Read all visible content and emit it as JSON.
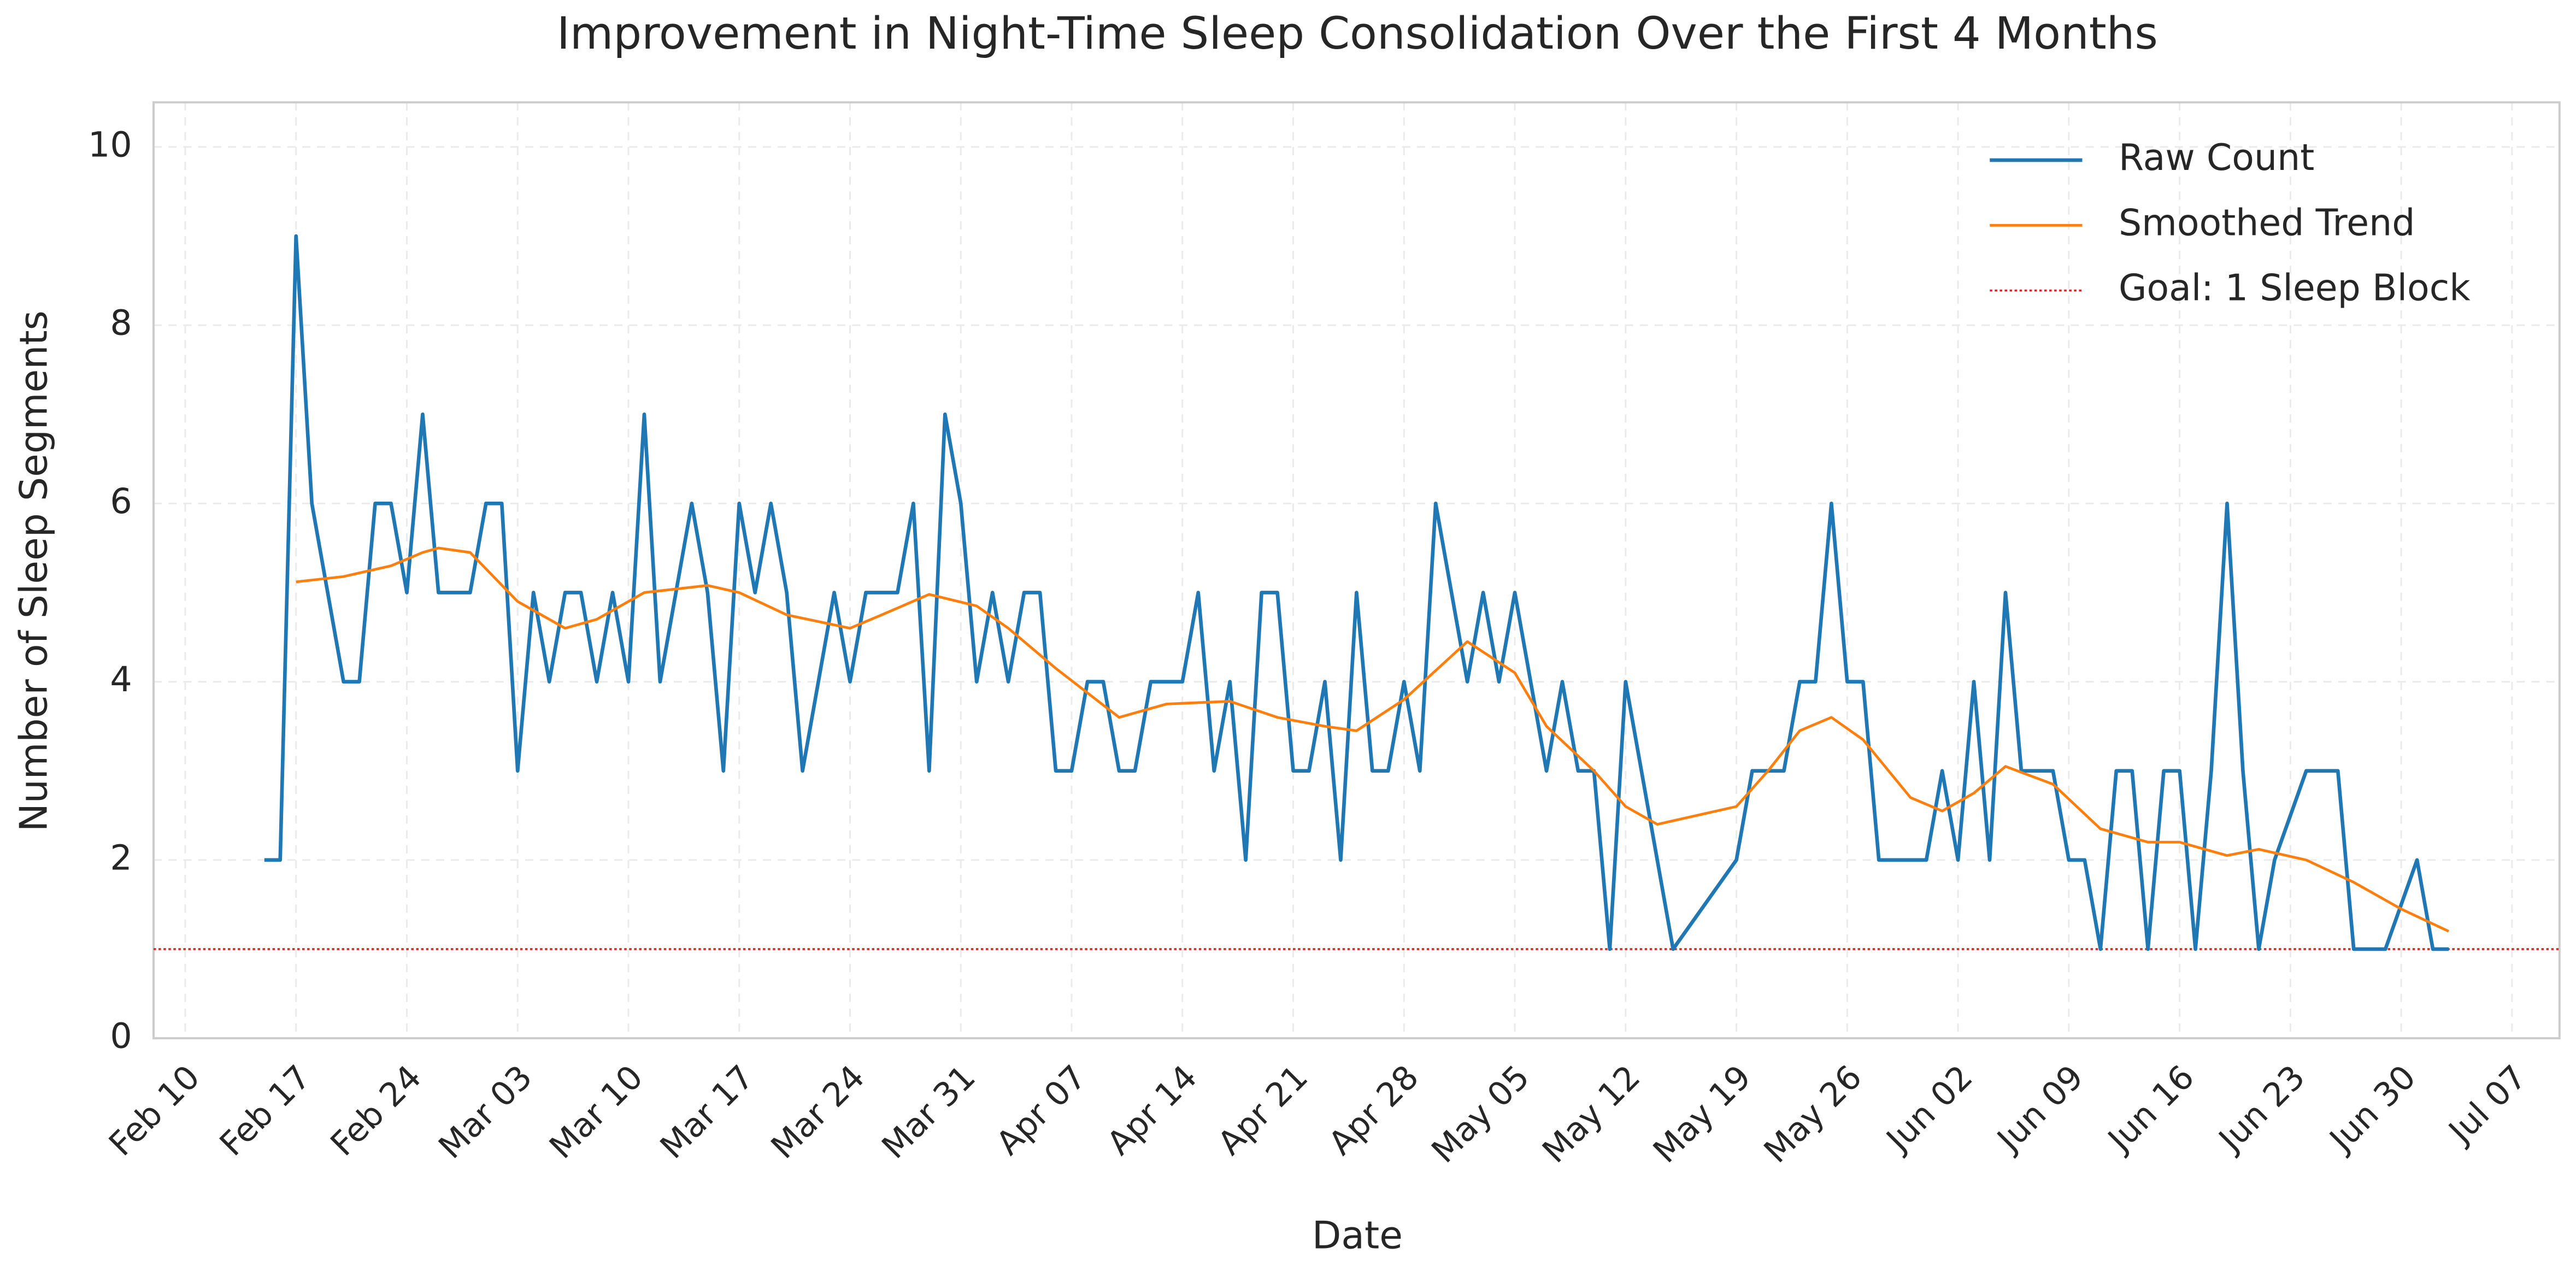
{
  "chart_data": {
    "type": "line",
    "title": "Improvement in Night-Time Sleep Consolidation Over the First 4 Months",
    "xlabel": "Date",
    "ylabel": "Number of Sleep Segments",
    "xlim": [
      "Feb 08",
      "Jul 10"
    ],
    "ylim": [
      0,
      10.5
    ],
    "xticks": [
      "Feb 10",
      "Feb 17",
      "Feb 24",
      "Mar 03",
      "Mar 10",
      "Mar 17",
      "Mar 24",
      "Mar 31",
      "Apr 07",
      "Apr 14",
      "Apr 21",
      "Apr 28",
      "May 05",
      "May 12",
      "May 19",
      "May 26",
      "Jun 02",
      "Jun 09",
      "Jun 16",
      "Jun 23",
      "Jun 30",
      "Jul 07"
    ],
    "yticks": [
      0,
      2,
      4,
      6,
      8,
      10
    ],
    "grid": true,
    "legend": "upper right",
    "series": [
      {
        "name": "Raw Count",
        "color": "#1f77b4",
        "width": 2.2,
        "x": [
          "Feb 15",
          "Feb 16",
          "Feb 17",
          "Feb 18",
          "Feb 19",
          "Feb 20",
          "Feb 21",
          "Feb 22",
          "Feb 23",
          "Feb 24",
          "Feb 25",
          "Feb 26",
          "Feb 27",
          "Feb 28",
          "Mar 01",
          "Mar 02",
          "Mar 03",
          "Mar 04",
          "Mar 05",
          "Mar 06",
          "Mar 07",
          "Mar 08",
          "Mar 09",
          "Mar 10",
          "Mar 11",
          "Mar 12",
          "Mar 13",
          "Mar 14",
          "Mar 15",
          "Mar 16",
          "Mar 17",
          "Mar 18",
          "Mar 19",
          "Mar 20",
          "Mar 21",
          "Mar 22",
          "Mar 23",
          "Mar 24",
          "Mar 25",
          "Mar 26",
          "Mar 27",
          "Mar 28",
          "Mar 29",
          "Mar 30",
          "Mar 31",
          "Apr 01",
          "Apr 02",
          "Apr 03",
          "Apr 04",
          "Apr 05",
          "Apr 06",
          "Apr 07",
          "Apr 08",
          "Apr 09",
          "Apr 10",
          "Apr 11",
          "Apr 12",
          "Apr 13",
          "Apr 14",
          "Apr 15",
          "Apr 16",
          "Apr 17",
          "Apr 18",
          "Apr 19",
          "Apr 20",
          "Apr 21",
          "Apr 22",
          "Apr 23",
          "Apr 24",
          "Apr 25",
          "Apr 26",
          "Apr 27",
          "Apr 28",
          "Apr 29",
          "Apr 30",
          "May 01",
          "May 02",
          "May 03",
          "May 04",
          "May 05",
          "May 06",
          "May 07",
          "May 08",
          "May 09",
          "May 10",
          "May 11",
          "May 12",
          "May 15",
          "May 19",
          "May 20",
          "May 21",
          "May 22",
          "May 23",
          "May 24",
          "May 25",
          "May 26",
          "May 27",
          "May 28",
          "May 29",
          "May 30",
          "May 31",
          "Jun 01",
          "Jun 02",
          "Jun 03",
          "Jun 04",
          "Jun 05",
          "Jun 06",
          "Jun 07",
          "Jun 08",
          "Jun 09",
          "Jun 10",
          "Jun 11",
          "Jun 12",
          "Jun 13",
          "Jun 14",
          "Jun 15",
          "Jun 16",
          "Jun 17",
          "Jun 18",
          "Jun 19",
          "Jun 20",
          "Jun 21",
          "Jun 22",
          "Jun 24",
          "Jun 25",
          "Jun 26",
          "Jun 27",
          "Jun 28",
          "Jun 29",
          "Jul 01",
          "Jul 02",
          "Jul 03"
        ],
        "values": [
          2,
          2,
          9,
          6,
          5,
          4,
          4,
          6,
          6,
          5,
          7,
          5,
          5,
          5,
          6,
          6,
          3,
          5,
          4,
          5,
          5,
          4,
          5,
          4,
          7,
          4,
          5,
          6,
          5,
          3,
          6,
          5,
          6,
          5,
          3,
          4,
          5,
          4,
          5,
          5,
          5,
          6,
          3,
          7,
          6,
          4,
          5,
          4,
          5,
          5,
          3,
          3,
          4,
          4,
          3,
          3,
          4,
          4,
          4,
          5,
          3,
          4,
          2,
          5,
          5,
          3,
          3,
          4,
          2,
          5,
          3,
          3,
          4,
          3,
          6,
          5,
          4,
          5,
          4,
          5,
          4,
          3,
          4,
          3,
          3,
          1,
          4,
          1,
          2,
          3,
          3,
          3,
          4,
          4,
          6,
          4,
          4,
          2,
          2,
          2,
          2,
          3,
          2,
          4,
          2,
          5,
          3,
          3,
          3,
          2,
          2,
          1,
          3,
          3,
          1,
          3,
          3,
          1,
          3,
          6,
          3,
          1,
          2,
          3,
          3,
          3,
          1,
          1,
          1,
          2,
          1,
          1
        ]
      },
      {
        "name": "Smoothed Trend",
        "color": "#ff7f0e",
        "width": 1.6,
        "x": [
          "Feb 17",
          "Feb 20",
          "Feb 23",
          "Feb 25",
          "Feb 26",
          "Feb 28",
          "Mar 03",
          "Mar 06",
          "Mar 08",
          "Mar 11",
          "Mar 15",
          "Mar 17",
          "Mar 20",
          "Mar 24",
          "Mar 26",
          "Mar 29",
          "Apr 01",
          "Apr 03",
          "Apr 06",
          "Apr 10",
          "Apr 13",
          "Apr 17",
          "Apr 20",
          "Apr 23",
          "Apr 25",
          "Apr 28",
          "May 02",
          "May 05",
          "May 07",
          "May 10",
          "May 12",
          "May 14",
          "May 19",
          "May 21",
          "May 23",
          "May 25",
          "May 27",
          "May 30",
          "Jun 01",
          "Jun 03",
          "Jun 05",
          "Jun 08",
          "Jun 11",
          "Jun 14",
          "Jun 16",
          "Jun 19",
          "Jun 21",
          "Jun 24",
          "Jun 27",
          "Jun 30",
          "Jul 03"
        ],
        "values": [
          5.12,
          5.18,
          5.3,
          5.45,
          5.5,
          5.45,
          4.9,
          4.6,
          4.7,
          5.0,
          5.08,
          5.0,
          4.75,
          4.6,
          4.75,
          4.98,
          4.85,
          4.6,
          4.15,
          3.6,
          3.75,
          3.78,
          3.6,
          3.5,
          3.45,
          3.8,
          4.45,
          4.1,
          3.5,
          3.0,
          2.6,
          2.4,
          2.6,
          3.0,
          3.45,
          3.6,
          3.35,
          2.7,
          2.55,
          2.75,
          3.05,
          2.85,
          2.35,
          2.2,
          2.2,
          2.05,
          2.12,
          2.0,
          1.75,
          1.45,
          1.2
        ]
      }
    ],
    "goal": {
      "name": "Goal: 1 Sleep Block",
      "value": 1,
      "color": "#d62728"
    }
  }
}
